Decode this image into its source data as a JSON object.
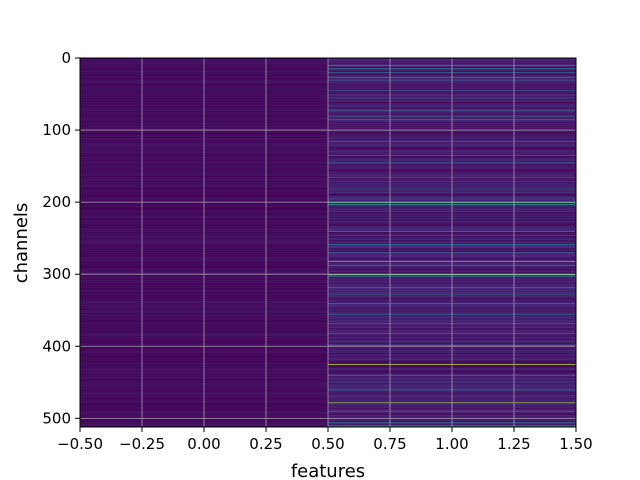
{
  "chart_data": {
    "type": "heatmap",
    "title": "",
    "xlabel": "features",
    "ylabel": "channels",
    "x_columns": [
      0,
      1
    ],
    "xlim": [
      -0.5,
      1.5
    ],
    "ylim": [
      512,
      0
    ],
    "y_inverted": true,
    "x_ticks": [
      -0.5,
      -0.25,
      0.0,
      0.25,
      0.5,
      0.75,
      1.0,
      1.25,
      1.5
    ],
    "x_tick_labels": [
      "−0.50",
      "−0.25",
      "0.00",
      "0.25",
      "0.50",
      "0.75",
      "1.00",
      "1.25",
      "1.50"
    ],
    "y_ticks": [
      0,
      100,
      200,
      300,
      400,
      500
    ],
    "y_tick_labels": [
      "0",
      "100",
      "200",
      "300",
      "400",
      "500"
    ],
    "grid": true,
    "colormap": "viridis",
    "rows": 512,
    "column_0_typical_value": 0.04,
    "column_1_background_value": 0.1,
    "column_1_bright_rows": [
      {
        "row": 10,
        "value": 0.45
      },
      {
        "row": 14,
        "value": 0.35
      },
      {
        "row": 20,
        "value": 0.4
      },
      {
        "row": 27,
        "value": 0.45
      },
      {
        "row": 30,
        "value": 0.35
      },
      {
        "row": 45,
        "value": 0.3
      },
      {
        "row": 55,
        "value": 0.3
      },
      {
        "row": 72,
        "value": 0.3
      },
      {
        "row": 80,
        "value": 0.45
      },
      {
        "row": 85,
        "value": 0.35
      },
      {
        "row": 115,
        "value": 0.3
      },
      {
        "row": 135,
        "value": 0.3
      },
      {
        "row": 145,
        "value": 0.35
      },
      {
        "row": 165,
        "value": 0.3
      },
      {
        "row": 180,
        "value": 0.3
      },
      {
        "row": 200,
        "value": 0.65
      },
      {
        "row": 203,
        "value": 0.55
      },
      {
        "row": 240,
        "value": 0.55
      },
      {
        "row": 258,
        "value": 0.4
      },
      {
        "row": 270,
        "value": 0.35
      },
      {
        "row": 282,
        "value": 0.7
      },
      {
        "row": 287,
        "value": 0.5
      },
      {
        "row": 300,
        "value": 0.72
      },
      {
        "row": 302,
        "value": 0.6
      },
      {
        "row": 318,
        "value": 0.4
      },
      {
        "row": 327,
        "value": 0.45
      },
      {
        "row": 340,
        "value": 0.4
      },
      {
        "row": 355,
        "value": 0.35
      },
      {
        "row": 368,
        "value": 0.4
      },
      {
        "row": 382,
        "value": 0.35
      },
      {
        "row": 398,
        "value": 0.5
      },
      {
        "row": 425,
        "value": 0.9
      },
      {
        "row": 440,
        "value": 0.35
      },
      {
        "row": 460,
        "value": 0.35
      },
      {
        "row": 478,
        "value": 0.85
      },
      {
        "row": 490,
        "value": 0.4
      },
      {
        "row": 505,
        "value": 0.35
      },
      {
        "row": 510,
        "value": 0.65
      }
    ]
  }
}
